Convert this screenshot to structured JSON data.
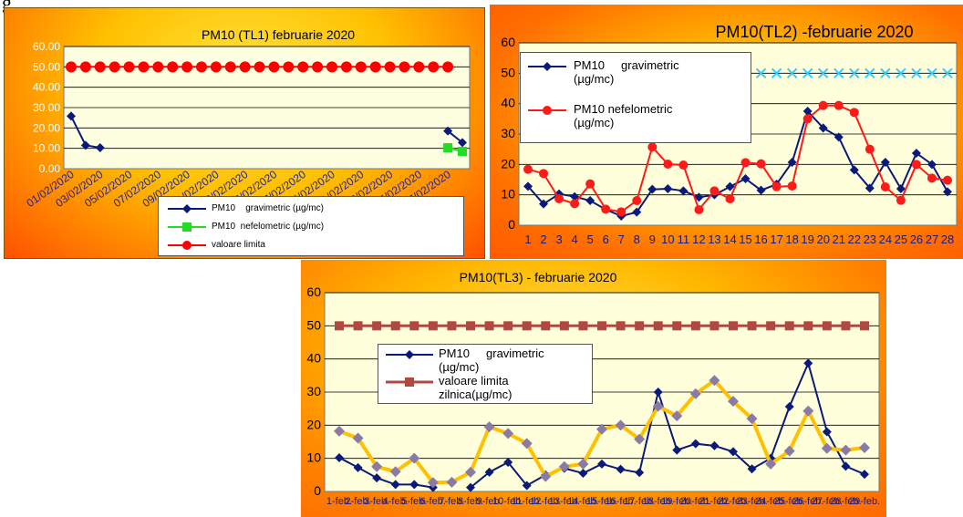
{
  "figure_label": "g",
  "chart_data": [
    {
      "type": "line",
      "title": "PM10  (TL1) februarie 2020",
      "xlabel": "",
      "ylabel": "",
      "ylim": [
        0,
        60
      ],
      "yticks": [
        "0.00",
        "10.00",
        "20.00",
        "30.00",
        "40.00",
        "50.00",
        "60.00"
      ],
      "xtick_labels": [
        "01/02/2020",
        "03/02/2020",
        "05/02/2020",
        "07/02/2020",
        "09/02/2020",
        "11/02/2020",
        "13/02/2020",
        "15/02/2020",
        "17/02/2020",
        "19/02/2020",
        "21/02/2020",
        "23/02/2020",
        "25/02/2020",
        "27/02/2020"
      ],
      "x": [
        1,
        2,
        3,
        4,
        5,
        6,
        7,
        8,
        9,
        10,
        11,
        12,
        13,
        14,
        15,
        16,
        17,
        18,
        19,
        20,
        21,
        22,
        23,
        24,
        25,
        26,
        27,
        28
      ],
      "grid": true,
      "legend_position": "bottom-right",
      "series": [
        {
          "name": "PM10    gravimetric (µg/mc)",
          "color": "#0a1a7a",
          "marker": "diamond",
          "values": [
            25.8,
            11.5,
            10.3,
            null,
            null,
            null,
            null,
            null,
            null,
            null,
            null,
            null,
            null,
            null,
            null,
            null,
            null,
            null,
            null,
            null,
            null,
            null,
            null,
            null,
            null,
            null,
            18.5,
            12.8
          ]
        },
        {
          "name": "PM10  nefelometric (µg/mc)",
          "color": "#22dd22",
          "marker": "square",
          "values": [
            null,
            null,
            null,
            null,
            null,
            null,
            null,
            null,
            null,
            null,
            null,
            null,
            null,
            null,
            null,
            null,
            null,
            null,
            null,
            null,
            null,
            null,
            null,
            null,
            null,
            null,
            10.3,
            8.5
          ]
        },
        {
          "name": "valoare limita",
          "color": "#ff0000",
          "marker": "circle",
          "values": [
            50,
            50,
            50,
            50,
            50,
            50,
            50,
            50,
            50,
            50,
            50,
            50,
            50,
            50,
            50,
            50,
            50,
            50,
            50,
            50,
            50,
            50,
            50,
            50,
            50,
            50,
            50,
            null
          ]
        }
      ]
    },
    {
      "type": "line",
      "title": "PM10(TL2) -februarie 2020",
      "xlabel": "",
      "ylabel": "",
      "ylim": [
        0,
        60
      ],
      "yticks": [
        "0",
        "10",
        "20",
        "30",
        "40",
        "50",
        "60"
      ],
      "categories": [
        "1",
        "2",
        "3",
        "4",
        "5",
        "6",
        "7",
        "8",
        "9",
        "10",
        "11",
        "12",
        "13",
        "14",
        "15",
        "16",
        "17",
        "18",
        "19",
        "20",
        "21",
        "22",
        "23",
        "24",
        "25",
        "26",
        "27",
        "28"
      ],
      "grid": true,
      "legend_position": "top-left",
      "series": [
        {
          "name": "PM10     gravimetric\n(µg/mc)",
          "color": "#0a1a7a",
          "marker": "diamond",
          "values": [
            12.8,
            7.0,
            10.3,
            9.4,
            8.1,
            5.2,
            3.0,
            4.3,
            11.8,
            12.0,
            11.3,
            9.2,
            10.0,
            12.7,
            15.3,
            11.5,
            13.5,
            20.7,
            37.5,
            32.0,
            29.0,
            18.2,
            12.2,
            20.7,
            12.0,
            23.7,
            20.0,
            11.0
          ]
        },
        {
          "name": "PM10 nefelometric\n(µg/mc)",
          "color": "#ff1a1a",
          "marker": "circle",
          "values": [
            18.4,
            17.0,
            8.7,
            7.1,
            13.6,
            5.3,
            4.4,
            8.1,
            25.7,
            20.1,
            19.8,
            5.1,
            11.3,
            8.7,
            20.6,
            20.2,
            12.7,
            12.9,
            35.0,
            39.4,
            39.4,
            37.1,
            25.0,
            12.6,
            8.2,
            20.0,
            15.5,
            14.8
          ]
        },
        {
          "name": "",
          "color": "#33ccff",
          "marker": "x",
          "values": [
            null,
            null,
            null,
            null,
            null,
            null,
            null,
            null,
            null,
            null,
            null,
            null,
            null,
            null,
            50,
            50,
            50,
            50,
            50,
            50,
            50,
            50,
            50,
            50,
            50,
            50,
            50,
            50
          ]
        }
      ]
    },
    {
      "type": "line",
      "title": "PM10(TL3) - februarie 2020",
      "xlabel": "",
      "ylabel": "",
      "ylim": [
        0,
        60
      ],
      "yticks": [
        "0",
        "10",
        "20",
        "30",
        "40",
        "50",
        "60"
      ],
      "categories": [
        "1-feb.",
        "2-feb.",
        "3-feb.",
        "4-feb.",
        "5-feb.",
        "6-feb.",
        "7-feb.",
        "8-feb.",
        "9-feb.",
        "10-feb.",
        "11-feb.",
        "12-feb.",
        "13-feb.",
        "14-feb.",
        "15-feb.",
        "16-feb.",
        "17-feb.",
        "18-feb.",
        "19-feb.",
        "20-feb.",
        "21-feb.",
        "22-feb.",
        "23-feb.",
        "24-feb.",
        "25-feb.",
        "26-feb.",
        "27-feb.",
        "28-feb.",
        "29-feb."
      ],
      "grid": true,
      "legend_position": "top-left",
      "series": [
        {
          "name": "PM10     gravimetric\n(µg/mc)",
          "color": "#0a1a7a",
          "marker": "diamond",
          "values": [
            10.2,
            7.2,
            4.1,
            2.1,
            2.1,
            1.2,
            null,
            1.2,
            5.8,
            8.8,
            1.8,
            5.0,
            7.0,
            5.5,
            8.3,
            6.7,
            5.7,
            30.0,
            12.5,
            14.4,
            13.8,
            12.0,
            6.8,
            10.0,
            25.6,
            38.7,
            18.0,
            7.6,
            5.2
          ]
        },
        {
          "name": "valoare limita\nzilnica(µg/mc)",
          "color": "#b04a40",
          "marker": "square",
          "values": [
            50,
            50,
            50,
            50,
            50,
            50,
            50,
            50,
            50,
            50,
            50,
            50,
            50,
            50,
            50,
            50,
            50,
            50,
            50,
            50,
            50,
            50,
            50,
            50,
            50,
            50,
            50,
            50,
            50
          ]
        },
        {
          "name": "",
          "color": "#ffc000",
          "marker": "diamond",
          "marker_color": "#8a7aa6",
          "values": [
            18.2,
            16.1,
            7.5,
            6.0,
            10.0,
            2.7,
            2.8,
            5.8,
            19.5,
            17.5,
            14.5,
            4.5,
            7.5,
            8.3,
            18.8,
            20.0,
            15.8,
            25.7,
            22.8,
            29.5,
            33.5,
            27.2,
            22.0,
            8.3,
            12.2,
            24.3,
            13.0,
            12.5,
            13.2
          ]
        }
      ]
    }
  ]
}
